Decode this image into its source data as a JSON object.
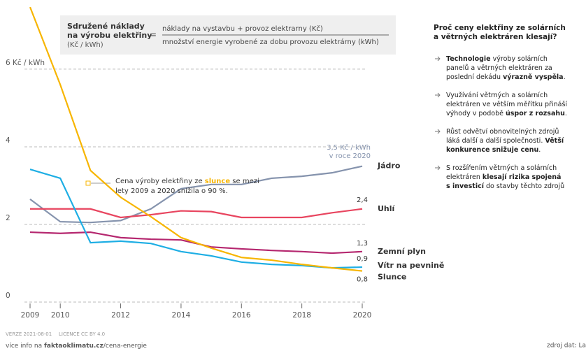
{
  "chart_data": {
    "type": "line",
    "formula": {
      "left": [
        "Sdružené náklady",
        "na výrobu elektřiny"
      ],
      "left_unit": "(Kč / kWh)",
      "equals": "=",
      "numerator": "náklady na vystavbu + provoz elektrarny (Kč)",
      "denominator": "množství energie vyrobené za dobu provozu elektrárny (kWh)"
    },
    "annotation": [
      [
        "Cena výroby elektřiny ze ",
        {
          "bold": "slunce"
        },
        " se mezi"
      ],
      [
        "lety 2009 a 2020 snížila o 90 %."
      ]
    ],
    "nuclear_note": [
      "3,5 Kč / kWh",
      "v roce 2020"
    ],
    "x": [
      2009,
      2010,
      2011,
      2012,
      2013,
      2014,
      2015,
      2016,
      2017,
      2018,
      2019,
      2020
    ],
    "xlim": [
      2009,
      2020
    ],
    "xticks": [
      2009,
      2010,
      2012,
      2014,
      2016,
      2018,
      2020
    ],
    "ylim": [
      0,
      7.8
    ],
    "yticks": [
      0,
      2,
      4,
      {
        "value": 6,
        "label": "6 Kč / kWh"
      }
    ],
    "grid": true,
    "series": [
      {
        "name": "Jádro",
        "color": "#8593ad",
        "values": [
          2.65,
          2.07,
          2.05,
          2.1,
          2.4,
          2.92,
          3.03,
          3.03,
          3.19,
          3.24,
          3.33,
          3.5
        ]
      },
      {
        "name": "Uhlí",
        "color": "#e8455f",
        "values": [
          2.4,
          2.4,
          2.4,
          2.18,
          2.25,
          2.35,
          2.33,
          2.18,
          2.18,
          2.18,
          2.3,
          2.4
        ],
        "value_labels": [
          null,
          null,
          null,
          null,
          null,
          null,
          null,
          null,
          null,
          null,
          null,
          "2,4"
        ]
      },
      {
        "name": "Zemní plyn",
        "color": "#b5276f",
        "values": [
          1.8,
          1.77,
          1.8,
          1.66,
          1.62,
          1.6,
          1.42,
          1.37,
          1.33,
          1.3,
          1.26,
          1.3
        ],
        "value_labels": [
          null,
          null,
          null,
          null,
          null,
          null,
          null,
          null,
          null,
          null,
          null,
          "1,3"
        ]
      },
      {
        "name": "Vítr na pevnině",
        "color": "#1eaee4",
        "values": [
          3.42,
          3.19,
          1.53,
          1.57,
          1.51,
          1.3,
          1.19,
          1.03,
          0.97,
          0.94,
          0.88,
          0.9
        ],
        "value_labels": [
          null,
          null,
          null,
          null,
          null,
          null,
          null,
          null,
          null,
          null,
          null,
          "0,9"
        ]
      },
      {
        "name": "Slunce",
        "color": "#f7b500",
        "values": [
          7.6,
          5.6,
          3.39,
          2.7,
          2.2,
          1.66,
          1.39,
          1.15,
          1.08,
          0.97,
          0.88,
          0.8
        ],
        "value_labels": [
          null,
          null,
          null,
          null,
          null,
          null,
          null,
          null,
          null,
          null,
          null,
          "0,8"
        ]
      }
    ]
  },
  "side_panel": {
    "title": [
      "Proč ceny elektřiny ze solárních",
      "a větrných elektráren klesají?"
    ],
    "bullets": [
      [
        [
          {
            "bold": "Technologie"
          },
          " výroby solárních"
        ],
        [
          "panelů a větrných elektráren za"
        ],
        [
          "poslední dekádu ",
          {
            "bold": "výrazně vyspěla"
          },
          "."
        ]
      ],
      [
        [
          "Využívání větrných a solárních"
        ],
        [
          "elektráren ve větším měřítku přináší"
        ],
        [
          "výhody v podobě ",
          {
            "bold": "úspor z rozsahu"
          },
          "."
        ]
      ],
      [
        [
          "Růst odvětví obnovitelných zdrojů"
        ],
        [
          "láká další a další společnosti. ",
          {
            "bold": "Větší"
          }
        ],
        [
          {
            "bold": "konkurence snižuje cenu"
          },
          "."
        ]
      ],
      [
        [
          "S rozšířením větrných a solárních"
        ],
        [
          "elektráren ",
          {
            "bold": "klesají rizika spojená"
          }
        ],
        [
          {
            "bold": "s investicí"
          },
          " do stavby těchto zdrojů"
        ]
      ]
    ]
  },
  "footer": {
    "version": "VERZE 2021-08-01",
    "license": "LICENCE CC BY 4.0",
    "info": [
      "více info na ",
      {
        "bold": "faktaoklimatu.cz"
      },
      "/cena-energie"
    ],
    "source": "zdroj dat: La"
  }
}
